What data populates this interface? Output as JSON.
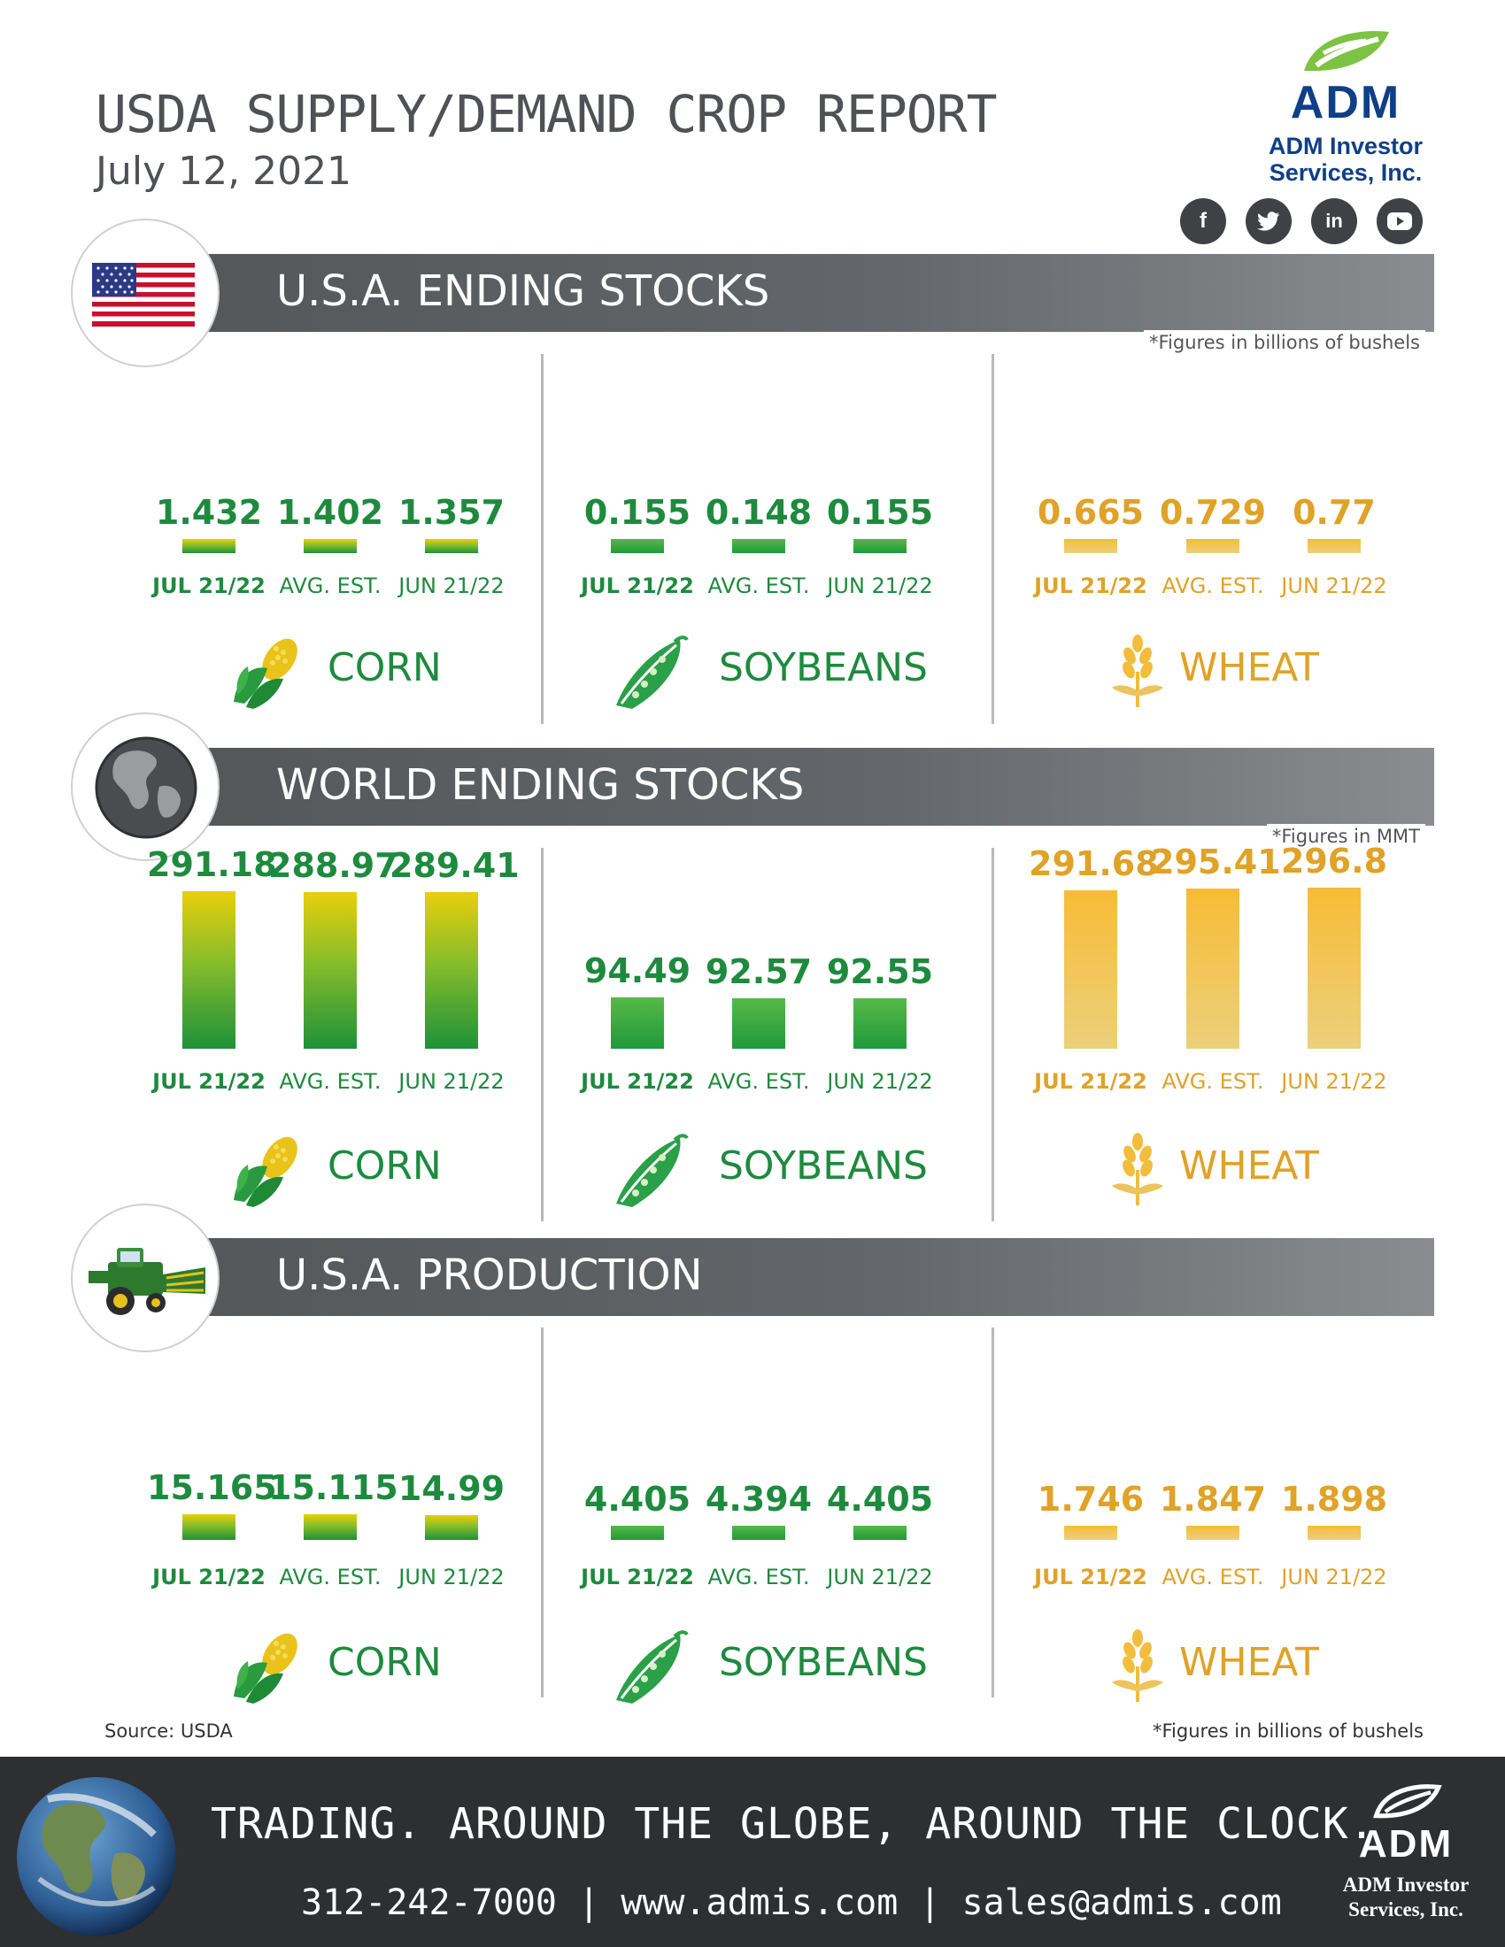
{
  "header": {
    "title": "USDA SUPPLY/DEMAND CROP REPORT",
    "date": "July 12, 2021"
  },
  "logo": {
    "brand": "ADM",
    "line1": "ADM Investor",
    "line2": "Services, Inc."
  },
  "social": [
    "f",
    "t",
    "in",
    "yt"
  ],
  "colors": {
    "band": "#5a5c5f",
    "corn_green": "#1e8a3e",
    "wheat_gold": "#e0a227",
    "footer": "#2e2f31"
  },
  "categories": [
    "JUL 21/22",
    "AVG. EST.",
    "JUN 21/22"
  ],
  "sections": [
    {
      "title": "U.S.A. ENDING STOCKS",
      "note": "*Figures in billions of bushels",
      "icon": "usa-flag-icon"
    },
    {
      "title": "WORLD ENDING STOCKS",
      "note": "*Figures in MMT",
      "icon": "globe-icon"
    },
    {
      "title": "U.S.A. PRODUCTION",
      "note": "",
      "icon": "combine-harvester-icon"
    }
  ],
  "crops": [
    "CORN",
    "SOYBEANS",
    "WHEAT"
  ],
  "chart_data": [
    {
      "type": "bar",
      "title": "U.S.A. ENDING STOCKS",
      "group": "CORN",
      "unit": "billions of bushels",
      "categories": [
        "JUL 21/22",
        "AVG. EST.",
        "JUN 21/22"
      ],
      "values": [
        1.432,
        1.402,
        1.357
      ],
      "labels": [
        "1.432",
        "1.402",
        "1.357"
      ]
    },
    {
      "type": "bar",
      "title": "U.S.A. ENDING STOCKS",
      "group": "SOYBEANS",
      "unit": "billions of bushels",
      "categories": [
        "JUL 21/22",
        "AVG. EST.",
        "JUN 21/22"
      ],
      "values": [
        0.155,
        0.148,
        0.155
      ],
      "labels": [
        "0.155",
        "0.148",
        "0.155"
      ]
    },
    {
      "type": "bar",
      "title": "U.S.A. ENDING STOCKS",
      "group": "WHEAT",
      "unit": "billions of bushels",
      "categories": [
        "JUL 21/22",
        "AVG. EST.",
        "JUN 21/22"
      ],
      "values": [
        0.665,
        0.729,
        0.77
      ],
      "labels": [
        "0.665",
        "0.729",
        "0.77"
      ]
    },
    {
      "type": "bar",
      "title": "WORLD ENDING STOCKS",
      "group": "CORN",
      "unit": "MMT",
      "categories": [
        "JUL 21/22",
        "AVG. EST.",
        "JUN 21/22"
      ],
      "values": [
        291.18,
        288.97,
        289.41
      ],
      "labels": [
        "291.18",
        "288.97",
        "289.41"
      ]
    },
    {
      "type": "bar",
      "title": "WORLD ENDING STOCKS",
      "group": "SOYBEANS",
      "unit": "MMT",
      "categories": [
        "JUL 21/22",
        "AVG. EST.",
        "JUN 21/22"
      ],
      "values": [
        94.49,
        92.57,
        92.55
      ],
      "labels": [
        "94.49",
        "92.57",
        "92.55"
      ]
    },
    {
      "type": "bar",
      "title": "WORLD ENDING STOCKS",
      "group": "WHEAT",
      "unit": "MMT",
      "categories": [
        "JUL 21/22",
        "AVG. EST.",
        "JUN 21/22"
      ],
      "values": [
        291.68,
        295.41,
        296.8
      ],
      "labels": [
        "291.68",
        "295.41",
        "296.8"
      ]
    },
    {
      "type": "bar",
      "title": "U.S.A. PRODUCTION",
      "group": "CORN",
      "unit": "billions of bushels",
      "categories": [
        "JUL 21/22",
        "AVG. EST.",
        "JUN 21/22"
      ],
      "values": [
        15.165,
        15.115,
        14.99
      ],
      "labels": [
        "15.165",
        "15.115",
        "14.99"
      ]
    },
    {
      "type": "bar",
      "title": "U.S.A. PRODUCTION",
      "group": "SOYBEANS",
      "unit": "billions of bushels",
      "categories": [
        "JUL 21/22",
        "AVG. EST.",
        "JUN 21/22"
      ],
      "values": [
        4.405,
        4.394,
        4.405
      ],
      "labels": [
        "4.405",
        "4.394",
        "4.405"
      ]
    },
    {
      "type": "bar",
      "title": "U.S.A. PRODUCTION",
      "group": "WHEAT",
      "unit": "billions of bushels",
      "categories": [
        "JUL 21/22",
        "AVG. EST.",
        "JUN 21/22"
      ],
      "values": [
        1.746,
        1.847,
        1.898
      ],
      "labels": [
        "1.746",
        "1.847",
        "1.898"
      ]
    }
  ],
  "source": "Source: USDA",
  "footer_note": "*Figures in billions of bushels",
  "footer": {
    "tagline": "TRADING. AROUND THE GLOBE, AROUND THE CLOCK.",
    "contact": "312-242-7000  |  www.admis.com  |  sales@admis.com",
    "brand": "ADM",
    "line1": "ADM Investor",
    "line2": "Services, Inc."
  }
}
